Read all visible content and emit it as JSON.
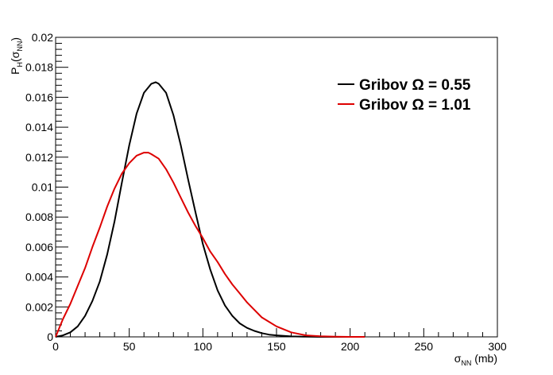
{
  "chart_data": {
    "type": "line",
    "title": "",
    "xlabel": {
      "main": "σ",
      "sub": "NN",
      "suffix": " (mb)"
    },
    "ylabel": {
      "main": "P",
      "sub": "H",
      "paren_open": "(σ",
      "paren_sub": "NN",
      "paren_close": ")"
    },
    "xlim": [
      0,
      300
    ],
    "ylim": [
      0,
      0.02
    ],
    "x_ticks": [
      0,
      50,
      100,
      150,
      200,
      250,
      300
    ],
    "x_tick_labels": [
      "0",
      "50",
      "100",
      "150",
      "200",
      "250",
      "300"
    ],
    "y_ticks": [
      0,
      0.002,
      0.004,
      0.006,
      0.008,
      0.01,
      0.012,
      0.014,
      0.016,
      0.018,
      0.02
    ],
    "y_tick_labels": [
      "0",
      "0.002",
      "0.004",
      "0.006",
      "0.008",
      "0.01",
      "0.012",
      "0.014",
      "0.016",
      "0.018",
      "0.02"
    ],
    "grid": false,
    "legend_position": "top-right",
    "series": [
      {
        "name": "Gribov Ω = 0.55",
        "color": "#000000",
        "x": [
          0,
          5,
          10,
          15,
          20,
          25,
          30,
          35,
          40,
          45,
          50,
          55,
          60,
          65,
          68,
          70,
          75,
          80,
          85,
          90,
          95,
          100,
          105,
          110,
          115,
          120,
          125,
          130,
          135,
          140,
          145,
          150,
          160,
          170,
          180,
          190,
          200
        ],
        "y": [
          0,
          0.0001,
          0.0003,
          0.0007,
          0.0014,
          0.0024,
          0.0037,
          0.0055,
          0.0077,
          0.0103,
          0.0128,
          0.0149,
          0.0163,
          0.0169,
          0.017,
          0.0169,
          0.0163,
          0.0148,
          0.0128,
          0.0105,
          0.0083,
          0.0062,
          0.0045,
          0.0031,
          0.0021,
          0.0014,
          0.0009,
          0.0006,
          0.0004,
          0.00025,
          0.00015,
          0.0001,
          3e-05,
          1e-05,
          0,
          0,
          0
        ]
      },
      {
        "name": "Gribov Ω = 1.01",
        "color": "#dd0000",
        "x": [
          0,
          5,
          10,
          15,
          20,
          25,
          30,
          35,
          40,
          45,
          50,
          55,
          60,
          63,
          65,
          70,
          75,
          80,
          85,
          90,
          95,
          100,
          105,
          110,
          115,
          120,
          125,
          130,
          135,
          140,
          145,
          150,
          160,
          170,
          180,
          190,
          200,
          210
        ],
        "y": [
          0,
          0.0012,
          0.0022,
          0.0034,
          0.0046,
          0.006,
          0.0073,
          0.0087,
          0.0099,
          0.0109,
          0.0116,
          0.0121,
          0.0123,
          0.0123,
          0.0122,
          0.0119,
          0.0112,
          0.0103,
          0.0093,
          0.0083,
          0.0074,
          0.0066,
          0.0057,
          0.005,
          0.0042,
          0.0035,
          0.0029,
          0.0023,
          0.0018,
          0.0013,
          0.001,
          0.0007,
          0.0003,
          0.0001,
          4e-05,
          1e-05,
          0,
          0
        ]
      }
    ]
  }
}
